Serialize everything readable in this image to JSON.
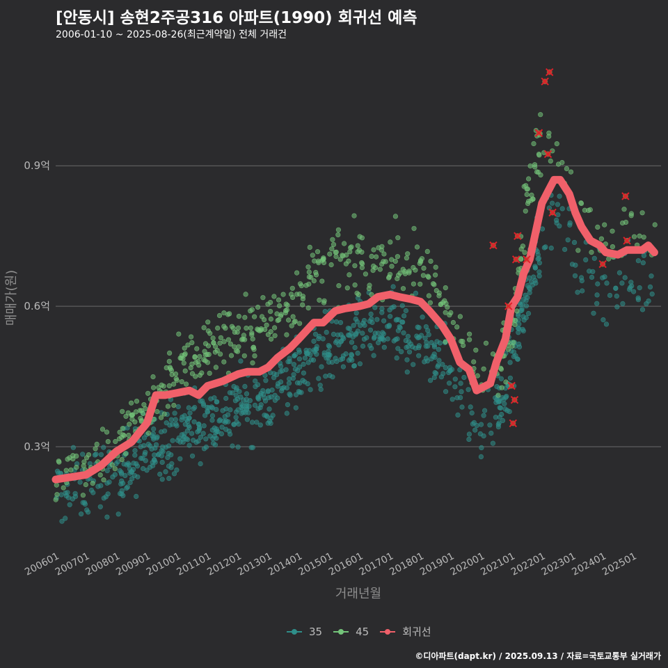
{
  "title": "[안동시] 송현2주공316 아파트(1990) 회귀선 예측",
  "subtitle": "2006-01-10 ~ 2025-08-26(최근계약일) 전체 거래건",
  "caption": "©디아파트(dapt.kr) / 2025.09.13 / 자료=국토교통부 실거래가",
  "colors": {
    "background": "#2b2b2d",
    "series35": "#2f8f8a",
    "series45": "#74c47a",
    "regression": "#f0606a",
    "outlier": "#e0202a",
    "grid": "#6a6a6a"
  },
  "chart_data": {
    "type": "scatter",
    "xlabel": "거래년월",
    "ylabel": "매매가(원)",
    "x_ticks": [
      "200601",
      "200701",
      "200801",
      "200901",
      "201001",
      "201101",
      "201201",
      "201301",
      "201401",
      "201501",
      "201601",
      "201701",
      "201801",
      "201901",
      "202001",
      "202101",
      "202201",
      "202301",
      "202401",
      "202501"
    ],
    "y_ticks": [
      {
        "value": 0.3,
        "label": "0.3억"
      },
      {
        "value": 0.6,
        "label": "0.6억"
      },
      {
        "value": 0.9,
        "label": "0.9억"
      }
    ],
    "xlim": [
      "2006-01-01",
      "2025-12-01"
    ],
    "ylim": [
      0.08,
      1.15
    ],
    "grid": true,
    "legend_position": "bottom",
    "series": [
      {
        "name": "35",
        "kind": "scatter",
        "trend": [
          [
            2006.0,
            0.2
          ],
          [
            2008.0,
            0.24
          ],
          [
            2009.0,
            0.29
          ],
          [
            2010.0,
            0.33
          ],
          [
            2012.0,
            0.38
          ],
          [
            2013.0,
            0.41
          ],
          [
            2014.0,
            0.47
          ],
          [
            2015.0,
            0.51
          ],
          [
            2016.0,
            0.53
          ],
          [
            2017.0,
            0.55
          ],
          [
            2018.0,
            0.53
          ],
          [
            2019.0,
            0.48
          ],
          [
            2019.5,
            0.38
          ],
          [
            2020.0,
            0.33
          ],
          [
            2020.6,
            0.38
          ],
          [
            2021.0,
            0.48
          ],
          [
            2021.6,
            0.67
          ],
          [
            2022.2,
            0.8
          ],
          [
            2022.6,
            0.78
          ],
          [
            2023.2,
            0.68
          ],
          [
            2024.0,
            0.65
          ],
          [
            2025.6,
            0.66
          ]
        ]
      },
      {
        "name": "45",
        "kind": "scatter",
        "trend": [
          [
            2006.0,
            0.24
          ],
          [
            2008.0,
            0.3
          ],
          [
            2009.0,
            0.38
          ],
          [
            2010.0,
            0.47
          ],
          [
            2011.0,
            0.51
          ],
          [
            2012.0,
            0.54
          ],
          [
            2013.0,
            0.56
          ],
          [
            2014.0,
            0.63
          ],
          [
            2015.0,
            0.69
          ],
          [
            2016.0,
            0.69
          ],
          [
            2017.0,
            0.7
          ],
          [
            2018.0,
            0.67
          ],
          [
            2019.0,
            0.6
          ],
          [
            2019.6,
            0.48
          ],
          [
            2020.0,
            0.44
          ],
          [
            2020.6,
            0.47
          ],
          [
            2021.0,
            0.57
          ],
          [
            2021.6,
            0.86
          ],
          [
            2022.0,
            0.97
          ],
          [
            2022.6,
            0.95
          ],
          [
            2023.2,
            0.8
          ],
          [
            2024.0,
            0.76
          ],
          [
            2025.6,
            0.74
          ]
        ]
      },
      {
        "name": "회귀선",
        "kind": "line",
        "points": [
          [
            2006.0,
            0.23
          ],
          [
            2006.5,
            0.235
          ],
          [
            2007.0,
            0.24
          ],
          [
            2007.5,
            0.26
          ],
          [
            2008.0,
            0.29
          ],
          [
            2008.5,
            0.31
          ],
          [
            2009.0,
            0.35
          ],
          [
            2009.3,
            0.41
          ],
          [
            2009.6,
            0.41
          ],
          [
            2010.0,
            0.415
          ],
          [
            2010.4,
            0.42
          ],
          [
            2010.7,
            0.41
          ],
          [
            2011.0,
            0.43
          ],
          [
            2011.5,
            0.44
          ],
          [
            2012.0,
            0.455
          ],
          [
            2012.3,
            0.46
          ],
          [
            2012.7,
            0.46
          ],
          [
            2013.0,
            0.47
          ],
          [
            2013.3,
            0.49
          ],
          [
            2013.7,
            0.51
          ],
          [
            2014.0,
            0.53
          ],
          [
            2014.5,
            0.565
          ],
          [
            2014.8,
            0.565
          ],
          [
            2015.2,
            0.59
          ],
          [
            2015.5,
            0.595
          ],
          [
            2016.0,
            0.6
          ],
          [
            2016.3,
            0.605
          ],
          [
            2016.6,
            0.62
          ],
          [
            2017.0,
            0.625
          ],
          [
            2017.3,
            0.62
          ],
          [
            2017.7,
            0.615
          ],
          [
            2018.0,
            0.61
          ],
          [
            2018.3,
            0.59
          ],
          [
            2018.7,
            0.56
          ],
          [
            2019.0,
            0.53
          ],
          [
            2019.3,
            0.48
          ],
          [
            2019.6,
            0.465
          ],
          [
            2019.85,
            0.42
          ],
          [
            2020.0,
            0.425
          ],
          [
            2020.3,
            0.435
          ],
          [
            2020.5,
            0.48
          ],
          [
            2020.8,
            0.53
          ],
          [
            2021.0,
            0.6
          ],
          [
            2021.2,
            0.62
          ],
          [
            2021.4,
            0.67
          ],
          [
            2021.6,
            0.7
          ],
          [
            2021.8,
            0.76
          ],
          [
            2022.0,
            0.82
          ],
          [
            2022.2,
            0.845
          ],
          [
            2022.4,
            0.87
          ],
          [
            2022.6,
            0.87
          ],
          [
            2022.9,
            0.84
          ],
          [
            2023.1,
            0.8
          ],
          [
            2023.3,
            0.77
          ],
          [
            2023.6,
            0.74
          ],
          [
            2023.9,
            0.73
          ],
          [
            2024.1,
            0.715
          ],
          [
            2024.5,
            0.71
          ],
          [
            2024.8,
            0.72
          ],
          [
            2025.3,
            0.72
          ],
          [
            2025.5,
            0.73
          ],
          [
            2025.7,
            0.715
          ]
        ]
      }
    ],
    "outliers": [
      [
        2020.4,
        0.73
      ],
      [
        2020.9,
        0.6
      ],
      [
        2021.0,
        0.43
      ],
      [
        2021.05,
        0.35
      ],
      [
        2021.1,
        0.4
      ],
      [
        2021.15,
        0.7
      ],
      [
        2021.2,
        0.75
      ],
      [
        2021.5,
        0.7
      ],
      [
        2021.9,
        0.97
      ],
      [
        2022.1,
        1.08
      ],
      [
        2022.2,
        0.925
      ],
      [
        2022.25,
        1.1
      ],
      [
        2022.35,
        0.8
      ],
      [
        2024.0,
        0.69
      ],
      [
        2024.8,
        0.74
      ],
      [
        2024.75,
        0.835
      ]
    ]
  }
}
